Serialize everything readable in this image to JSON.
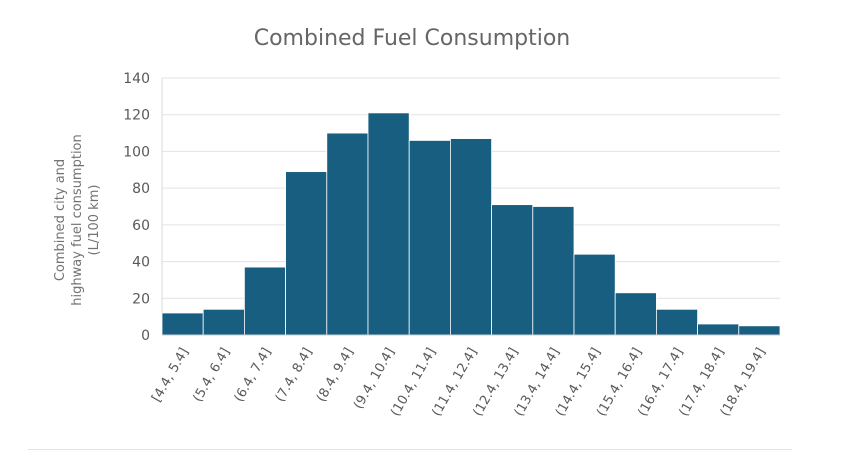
{
  "chart_data": {
    "type": "bar",
    "title": "Combined Fuel Consumption",
    "xlabel": "",
    "ylabel_lines": [
      "Combined city and",
      "highway fuel consumption",
      "(L/100 km)"
    ],
    "categories": [
      "[4.4, 5.4]",
      "(5.4, 6.4]",
      "(6.4, 7.4]",
      "(7.4, 8.4]",
      "(8.4, 9.4]",
      "(9.4, 10.4]",
      "(10.4, 11.4]",
      "(11.4, 12.4]",
      "(12.4, 13.4]",
      "(13.4, 14.4]",
      "(14.4, 15.4]",
      "(15.4, 16.4]",
      "(16.4, 17.4]",
      "(17.4, 18.4]",
      "(18.4, 19.4]"
    ],
    "values": [
      12,
      14,
      37,
      89,
      110,
      121,
      106,
      107,
      71,
      70,
      44,
      23,
      14,
      6,
      5
    ],
    "ylim": [
      0,
      140
    ],
    "yticks": [
      "0",
      "20",
      "40",
      "60",
      "80",
      "100",
      "120",
      "140"
    ],
    "grid": true,
    "legend": "none",
    "bar_color": "#175e80",
    "bar_edge_color": "#ffffff",
    "grid_color": "#e3e3e3",
    "text_color": "#595959"
  }
}
